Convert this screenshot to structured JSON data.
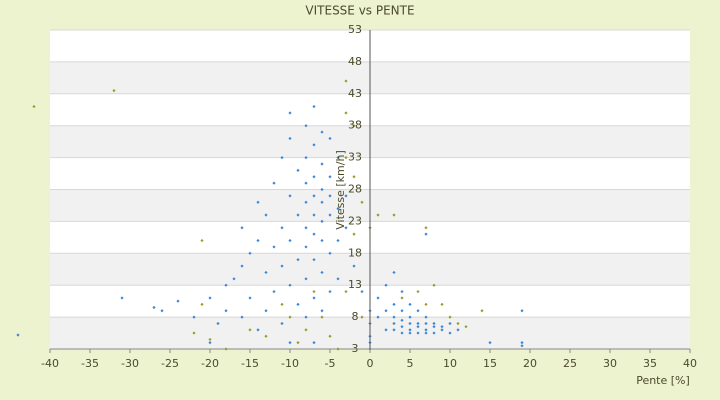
{
  "chart_data": {
    "type": "scatter",
    "title": "VITESSE vs PENTE",
    "x_label": "Pente [%]",
    "y_label": "Vitesse [km/h]",
    "xlim": [
      -40,
      40
    ],
    "xticks": [
      -40,
      -35,
      -30,
      -25,
      -20,
      -15,
      -10,
      -5,
      0,
      5,
      10,
      15,
      20,
      25,
      30,
      35,
      40
    ],
    "ylim": [
      3,
      53
    ],
    "yticks": [
      3,
      8,
      13,
      18,
      23,
      28,
      33,
      38,
      43,
      48,
      53
    ],
    "grid": true,
    "series": [
      {
        "color": "#3a87d3",
        "x": [
          -44,
          -31,
          -27,
          -26,
          -24,
          -22,
          -20,
          -20,
          -19,
          -18,
          -18,
          -17,
          -16,
          -16,
          -16,
          -15,
          -15,
          -14,
          -14,
          -14,
          -13,
          -13,
          -13,
          -12,
          -12,
          -12,
          -11,
          -11,
          -11,
          -11,
          -10,
          -10,
          -10,
          -10,
          -10,
          -10,
          -9,
          -9,
          -9,
          -9,
          -8,
          -8,
          -8,
          -8,
          -8,
          -8,
          -8,
          -8,
          -7,
          -7,
          -7,
          -7,
          -7,
          -7,
          -7,
          -7,
          -7,
          -6,
          -6,
          -6,
          -6,
          -6,
          -6,
          -6,
          -6,
          -5,
          -5,
          -5,
          -5,
          -5,
          -5,
          -4,
          -4,
          -4,
          -4,
          -3,
          -3,
          -2,
          -1,
          0,
          0,
          0,
          0,
          0,
          1,
          1,
          2,
          2,
          2,
          3,
          3,
          3,
          3,
          3,
          4,
          4,
          4,
          4,
          4,
          5,
          5,
          5,
          5,
          5,
          6,
          6,
          6,
          6,
          7,
          7,
          7,
          7,
          7,
          8,
          8,
          8,
          9,
          9,
          10,
          10,
          11,
          15,
          19,
          19,
          19
        ],
        "values": [
          5.2,
          11,
          9.5,
          9,
          10.5,
          8,
          11,
          4,
          7,
          13,
          9,
          14,
          16,
          22,
          8,
          18,
          11,
          20,
          26,
          6,
          24,
          15,
          9,
          29,
          19,
          12,
          33,
          22,
          16,
          7,
          40,
          36,
          27,
          20,
          13,
          4,
          31,
          24,
          17,
          10,
          38,
          33,
          29,
          26,
          22,
          19,
          14,
          8,
          41,
          35,
          30,
          27,
          24,
          21,
          17,
          11,
          4,
          37,
          32,
          28,
          26,
          23,
          20,
          15,
          9,
          36,
          30,
          27,
          24,
          18,
          12,
          33,
          25,
          20,
          14,
          27,
          22,
          16,
          12,
          3,
          4,
          5,
          7,
          9,
          8,
          11,
          6,
          9,
          13,
          6,
          7,
          8,
          10,
          15,
          5.5,
          6.5,
          7.5,
          9,
          12,
          5.5,
          6,
          7,
          8,
          10,
          5.5,
          6.5,
          7,
          9,
          5.5,
          6,
          7,
          8,
          21,
          5.5,
          6.5,
          7,
          6,
          6.5,
          5.5,
          7,
          6,
          4,
          3.5,
          4,
          9
        ]
      },
      {
        "color": "#9a9a2a",
        "x": [
          -42,
          -32,
          -21,
          -21,
          -22,
          -20,
          -18,
          -15,
          -13,
          -11,
          -10,
          -9,
          -8,
          -7,
          -6,
          -5,
          -4,
          -3,
          -3,
          -2,
          -3,
          -2,
          -1,
          -2,
          -3,
          -1,
          0,
          1,
          3,
          4,
          6,
          7,
          8,
          9,
          10,
          11,
          12,
          14,
          7
        ],
        "values": [
          41,
          43.5,
          20,
          10,
          5.5,
          4.5,
          3,
          6,
          5,
          10,
          8,
          4,
          6,
          12,
          8,
          5,
          3,
          45,
          40,
          38,
          33,
          30,
          26,
          21,
          12,
          8,
          22,
          24,
          24,
          11,
          12,
          10,
          13,
          10,
          8,
          7,
          6.5,
          9,
          22
        ]
      }
    ]
  }
}
